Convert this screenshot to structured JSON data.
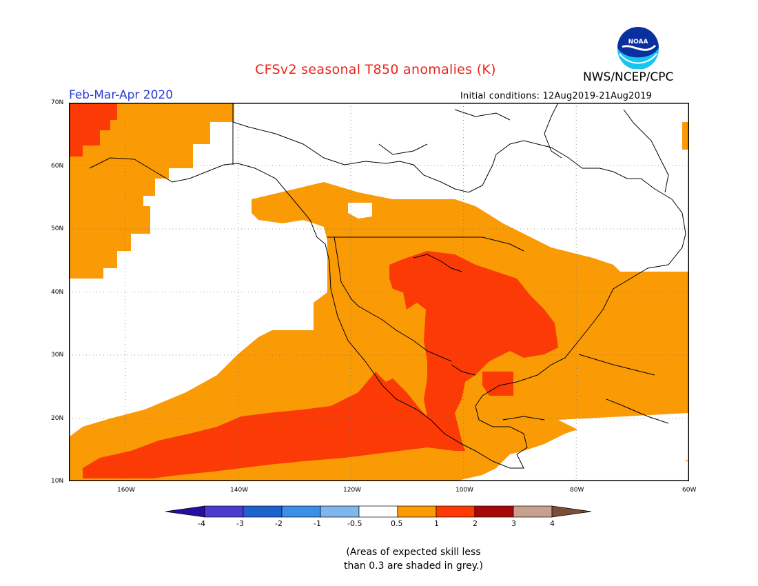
{
  "header": {
    "title": "CFSv2 seasonal T850 anomalies (K)",
    "org": "NWS/NCEP/CPC",
    "logo_text": "NOAA",
    "season": "Feb-Mar-Apr 2020",
    "initial_conditions": "Initial conditions: 12Aug2019-21Aug2019"
  },
  "map": {
    "lat_labels": [
      "70N",
      "60N",
      "50N",
      "40N",
      "30N",
      "20N",
      "10N"
    ],
    "lon_labels": [
      "160W",
      "140W",
      "120W",
      "100W",
      "80W",
      "60W"
    ],
    "projection": "lat-lon",
    "extent": {
      "lon": [
        -170,
        -60
      ],
      "lat": [
        10,
        70
      ]
    },
    "grid": "dotted"
  },
  "legend": {
    "tick_labels": [
      "-4",
      "-3",
      "-2",
      "-1",
      "-0.5",
      "0.5",
      "1",
      "2",
      "3",
      "4"
    ],
    "colors": {
      "lt_minus4": "#2a0d9e",
      "m4_m3": "#4b3cd0",
      "m3_m2": "#1f62cc",
      "m2_m1": "#3b8fe6",
      "m1_m05": "#7fb6ee",
      "m05_05": "#ffffff",
      "p05_1": "#fa9a04",
      "p1_2": "#fb3a06",
      "p2_3": "#a50a08",
      "p3_4": "#c9a08f",
      "gt_4": "#7a4d3b"
    }
  },
  "footnote": {
    "line1": "(Areas of expected skill less",
    "line2": "than 0.3 are shaded in grey.)"
  },
  "colors": {
    "title": "#e8241b",
    "season": "#2a3cd8",
    "orange": "#fa9a04",
    "red_orange": "#fb3a06"
  }
}
